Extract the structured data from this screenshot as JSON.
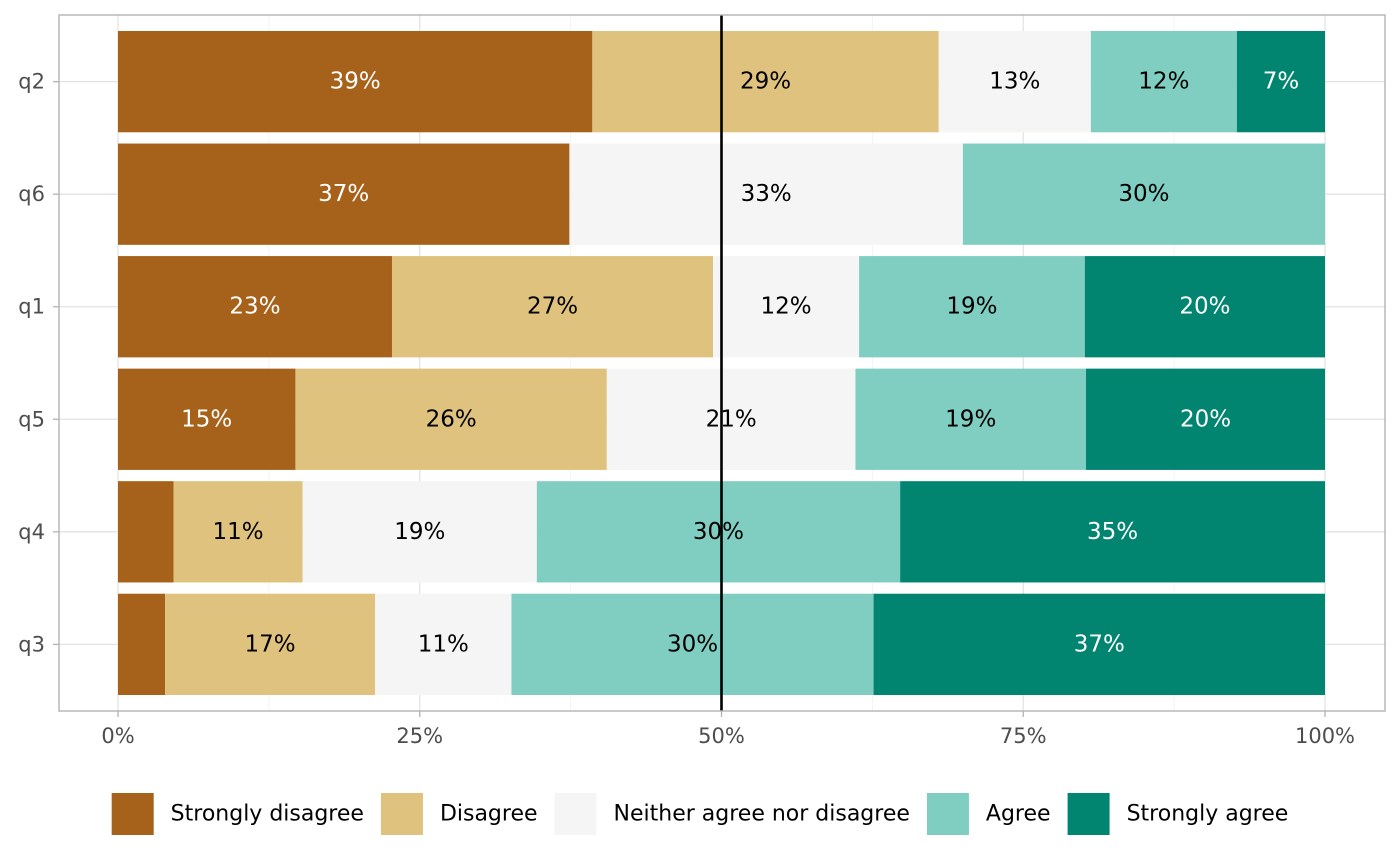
{
  "chart_data": {
    "type": "bar",
    "orientation": "horizontal",
    "stacked": true,
    "categories": [
      "q2",
      "q6",
      "q1",
      "q5",
      "q4",
      "q3"
    ],
    "series": [
      {
        "name": "Strongly disagree",
        "color": "#a6611a",
        "label_color": "#ffffff",
        "values": [
          39.3,
          37.4,
          22.7,
          14.7,
          4.6,
          3.9
        ],
        "labels": [
          "39%",
          "37%",
          "23%",
          "15%",
          "",
          ""
        ]
      },
      {
        "name": "Disagree",
        "color": "#dfc27d",
        "label_color": "#000000",
        "values": [
          28.7,
          0,
          26.6,
          25.8,
          10.7,
          17.4
        ],
        "labels": [
          "29%",
          "",
          "27%",
          "26%",
          "11%",
          "17%"
        ]
      },
      {
        "name": "Neither agree nor disagree",
        "color": "#f5f5f5",
        "label_color": "#000000",
        "values": [
          12.6,
          32.6,
          12.1,
          20.6,
          19.4,
          11.3
        ],
        "labels": [
          "13%",
          "33%",
          "12%",
          "21%",
          "19%",
          "11%"
        ]
      },
      {
        "name": "Agree",
        "color": "#80cdc1",
        "label_color": "#000000",
        "values": [
          12.1,
          30.0,
          18.7,
          19.1,
          30.1,
          30.0
        ],
        "labels": [
          "12%",
          "30%",
          "19%",
          "19%",
          "30%",
          "30%"
        ]
      },
      {
        "name": "Strongly agree",
        "color": "#018571",
        "label_color": "#ffffff",
        "values": [
          7.3,
          0,
          19.9,
          19.8,
          35.2,
          37.4
        ],
        "labels": [
          "7%",
          "",
          "20%",
          "20%",
          "35%",
          "37%"
        ]
      }
    ],
    "xlim": [
      0,
      100
    ],
    "x_ticks": [
      0,
      25,
      50,
      75,
      100
    ],
    "x_tick_labels": [
      "0%",
      "25%",
      "50%",
      "75%",
      "100%"
    ],
    "reference_line": 50,
    "title": "",
    "xlabel": "",
    "ylabel": "",
    "grid": true,
    "legend_position": "bottom"
  }
}
